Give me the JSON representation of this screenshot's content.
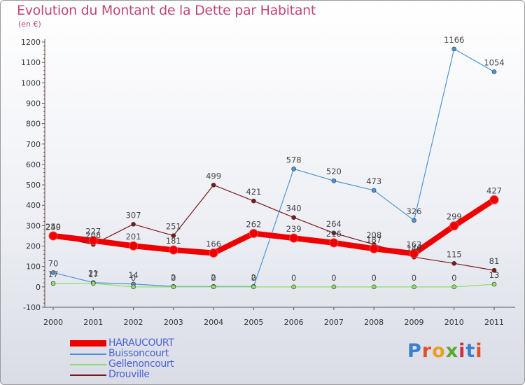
{
  "title": "Evolution du Montant de la Dette par Habitant",
  "subtitle": "(en €)",
  "logo_text": "Proxiti",
  "chart_data": {
    "type": "line",
    "title": "Evolution du Montant de la Dette par Habitant",
    "ylabel": "(en €)",
    "ylim": [
      -100,
      1200
    ],
    "yticks": [
      -100,
      0,
      100,
      200,
      300,
      400,
      500,
      600,
      700,
      800,
      900,
      1000,
      1100,
      1200
    ],
    "x": [
      "2000",
      "2001",
      "2002",
      "2003",
      "2004",
      "2005",
      "2006",
      "2007",
      "2008",
      "2009",
      "2010",
      "2011"
    ],
    "grid": false,
    "legend_position": "bottom-left",
    "series": [
      {
        "name": "HARAUCOURT",
        "color": "#ee0000",
        "width": 8,
        "values": [
          250,
          227,
          201,
          181,
          166,
          262,
          239,
          216,
          187,
          163,
          299,
          427
        ]
      },
      {
        "name": "Buissoncourt",
        "color": "#4d94d6",
        "width": 1.2,
        "values": [
          70,
          21,
          14,
          2,
          2,
          2,
          578,
          520,
          473,
          326,
          1166,
          1054
        ]
      },
      {
        "name": "Gellenoncourt",
        "color": "#8fdc6a",
        "width": 1.2,
        "values": [
          17,
          17,
          0,
          0,
          0,
          0,
          0,
          0,
          0,
          0,
          0,
          13
        ]
      },
      {
        "name": "Drouville",
        "color": "#7a1a1a",
        "width": 1.2,
        "values": [
          249,
          208,
          307,
          251,
          499,
          421,
          340,
          264,
          208,
          146,
          115,
          81
        ]
      }
    ]
  }
}
